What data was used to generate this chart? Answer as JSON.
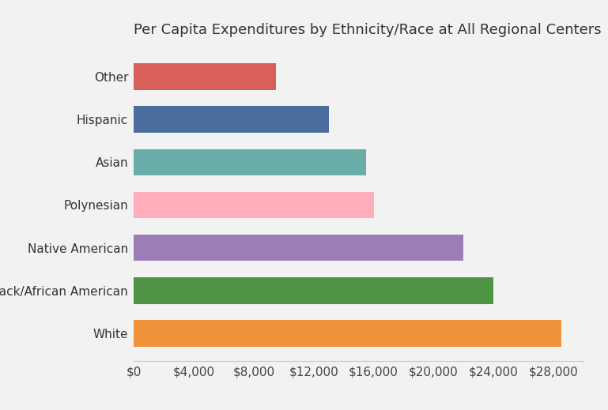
{
  "title": "Per Capita Expenditures by Ethnicity/Race at All Regional Centers",
  "categories": [
    "Other",
    "Hispanic",
    "Asian",
    "Polynesian",
    "Native American",
    "Black/African American",
    "White"
  ],
  "values": [
    9500,
    13000,
    15500,
    16000,
    22000,
    24000,
    28500
  ],
  "bar_colors": [
    "#d95f5a",
    "#4a6f9e",
    "#6aada8",
    "#ffadb8",
    "#9b7db8",
    "#4e9444",
    "#f0923a"
  ],
  "background_color": "#f2f2f2",
  "xlim": [
    0,
    30000
  ],
  "xticks": [
    0,
    4000,
    8000,
    12000,
    16000,
    20000,
    24000,
    28000
  ],
  "title_fontsize": 13,
  "ylabel_fontsize": 11,
  "xlabel_fontsize": 11,
  "bar_height": 0.62,
  "figsize": [
    7.69,
    5.19
  ],
  "dpi": 100
}
